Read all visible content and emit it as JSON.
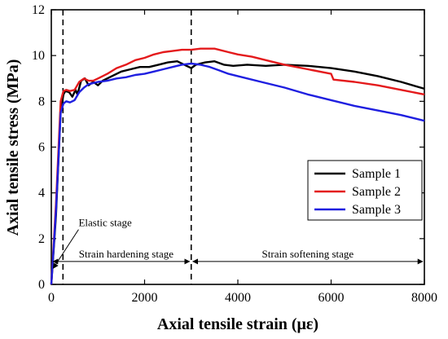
{
  "chart_data": {
    "type": "line",
    "xlabel": "Axial tensile strain (με)",
    "ylabel": "Axial tensile stress (MPa)",
    "xlim": [
      0,
      8000
    ],
    "ylim": [
      0,
      12
    ],
    "x_ticks": [
      0,
      2000,
      4000,
      6000,
      8000
    ],
    "y_ticks": [
      0,
      2,
      4,
      6,
      8,
      10,
      12
    ],
    "grid": false,
    "legend_position": "center-right",
    "series": [
      {
        "name": "Sample 1",
        "color": "#000000",
        "points": [
          [
            0,
            0
          ],
          [
            100,
            3.0
          ],
          [
            200,
            7.6
          ],
          [
            260,
            8.3
          ],
          [
            300,
            8.45
          ],
          [
            380,
            8.4
          ],
          [
            450,
            8.2
          ],
          [
            520,
            8.5
          ],
          [
            560,
            8.3
          ],
          [
            640,
            8.9
          ],
          [
            720,
            9.0
          ],
          [
            800,
            8.7
          ],
          [
            900,
            8.85
          ],
          [
            1000,
            8.7
          ],
          [
            1100,
            8.9
          ],
          [
            1300,
            9.1
          ],
          [
            1500,
            9.3
          ],
          [
            1700,
            9.4
          ],
          [
            1900,
            9.5
          ],
          [
            2100,
            9.5
          ],
          [
            2300,
            9.6
          ],
          [
            2500,
            9.7
          ],
          [
            2700,
            9.75
          ],
          [
            2900,
            9.55
          ],
          [
            3000,
            9.45
          ],
          [
            3100,
            9.6
          ],
          [
            3300,
            9.7
          ],
          [
            3500,
            9.75
          ],
          [
            3700,
            9.6
          ],
          [
            3900,
            9.55
          ],
          [
            4200,
            9.6
          ],
          [
            4600,
            9.55
          ],
          [
            5000,
            9.6
          ],
          [
            5500,
            9.55
          ],
          [
            6000,
            9.45
          ],
          [
            6500,
            9.3
          ],
          [
            7000,
            9.1
          ],
          [
            7500,
            8.85
          ],
          [
            8000,
            8.55
          ]
        ]
      },
      {
        "name": "Sample 2",
        "color": "#e41a1c",
        "points": [
          [
            0,
            0
          ],
          [
            100,
            3.5
          ],
          [
            200,
            8.0
          ],
          [
            260,
            8.45
          ],
          [
            320,
            8.5
          ],
          [
            400,
            8.45
          ],
          [
            500,
            8.5
          ],
          [
            600,
            8.85
          ],
          [
            700,
            9.0
          ],
          [
            800,
            8.9
          ],
          [
            900,
            8.9
          ],
          [
            1000,
            9.0
          ],
          [
            1200,
            9.2
          ],
          [
            1400,
            9.45
          ],
          [
            1600,
            9.6
          ],
          [
            1800,
            9.8
          ],
          [
            2000,
            9.9
          ],
          [
            2200,
            10.05
          ],
          [
            2400,
            10.15
          ],
          [
            2600,
            10.2
          ],
          [
            2800,
            10.25
          ],
          [
            3000,
            10.25
          ],
          [
            3200,
            10.3
          ],
          [
            3500,
            10.3
          ],
          [
            3800,
            10.15
          ],
          [
            4000,
            10.05
          ],
          [
            4300,
            9.95
          ],
          [
            4600,
            9.8
          ],
          [
            5000,
            9.6
          ],
          [
            5500,
            9.4
          ],
          [
            6000,
            9.2
          ],
          [
            6050,
            8.95
          ],
          [
            6500,
            8.85
          ],
          [
            7000,
            8.7
          ],
          [
            7500,
            8.5
          ],
          [
            8000,
            8.3
          ]
        ]
      },
      {
        "name": "Sample 3",
        "color": "#1f1fe0",
        "points": [
          [
            0,
            0
          ],
          [
            100,
            3.2
          ],
          [
            200,
            7.5
          ],
          [
            260,
            7.9
          ],
          [
            320,
            8.0
          ],
          [
            400,
            7.95
          ],
          [
            500,
            8.05
          ],
          [
            600,
            8.4
          ],
          [
            700,
            8.6
          ],
          [
            800,
            8.75
          ],
          [
            900,
            8.8
          ],
          [
            1000,
            8.85
          ],
          [
            1200,
            8.9
          ],
          [
            1400,
            9.0
          ],
          [
            1600,
            9.05
          ],
          [
            1800,
            9.15
          ],
          [
            2000,
            9.2
          ],
          [
            2200,
            9.3
          ],
          [
            2400,
            9.4
          ],
          [
            2600,
            9.5
          ],
          [
            2800,
            9.6
          ],
          [
            3000,
            9.65
          ],
          [
            3200,
            9.6
          ],
          [
            3400,
            9.5
          ],
          [
            3600,
            9.35
          ],
          [
            3800,
            9.2
          ],
          [
            4000,
            9.1
          ],
          [
            4500,
            8.85
          ],
          [
            5000,
            8.6
          ],
          [
            5500,
            8.3
          ],
          [
            6000,
            8.05
          ],
          [
            6500,
            7.8
          ],
          [
            7000,
            7.6
          ],
          [
            7500,
            7.4
          ],
          [
            8000,
            7.15
          ]
        ]
      }
    ],
    "vlines": [
      {
        "x": 250,
        "style": "dashed"
      },
      {
        "x": 3000,
        "style": "dashed"
      }
    ],
    "annotations": {
      "elastic_stage": {
        "text": "Elastic stage",
        "x": 200,
        "y": 2.4
      },
      "strain_hardening_stage": {
        "text": "Strain hardening stage",
        "x_start": 0,
        "x_end": 3000,
        "y": 1.0
      },
      "strain_softening_stage": {
        "text": "Strain softening stage",
        "x_start": 3000,
        "x_end": 8000,
        "y": 1.0
      }
    }
  }
}
